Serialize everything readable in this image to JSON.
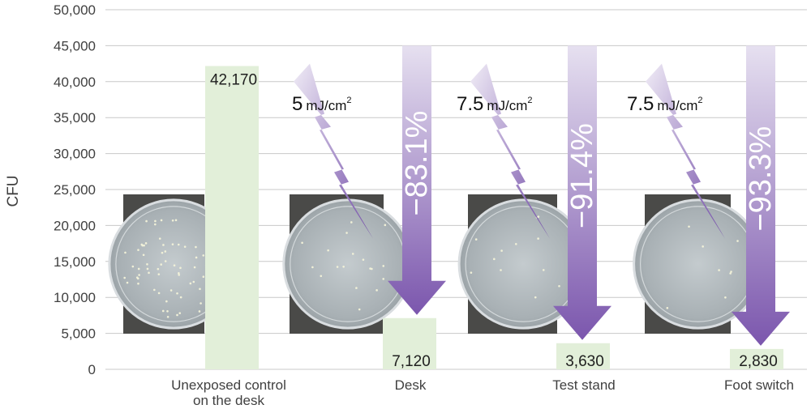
{
  "chart_data": {
    "type": "bar",
    "ylabel": "CFU",
    "ylim": [
      0,
      50000
    ],
    "yticks": [
      0,
      5000,
      10000,
      15000,
      20000,
      25000,
      30000,
      35000,
      40000,
      45000,
      50000
    ],
    "ytick_labels": [
      "0",
      "5,000",
      "10,000",
      "15,000",
      "20,000",
      "25,000",
      "30,000",
      "35,000",
      "40,000",
      "45,000",
      "50,000"
    ],
    "grid": true,
    "categories": [
      [
        "Unexposed control",
        "on the desk"
      ],
      [
        "Desk"
      ],
      [
        "Test stand"
      ],
      [
        "Foot switch"
      ]
    ],
    "values": [
      42170,
      7120,
      3630,
      2830
    ],
    "value_labels": [
      "42,170",
      "7,120",
      "3,630",
      "2,830"
    ],
    "annotations": [
      {
        "dose_value": "5",
        "dose_unit": "mJ/cm",
        "dose_sup": "2",
        "reduction": "−83.1%"
      },
      {
        "dose_value": "7.5",
        "dose_unit": "mJ/cm",
        "dose_sup": "2",
        "reduction": "−91.4%"
      },
      {
        "dose_value": "7.5",
        "dose_unit": "mJ/cm",
        "dose_sup": "2",
        "reduction": "−93.3%"
      }
    ],
    "colors": {
      "bar": "#e2efd9",
      "grid": "#c8c8c8",
      "arrow_light": "#e6e0f0",
      "arrow_dark": "#7b56ad",
      "bolt_dark": "#6f48a6"
    }
  }
}
